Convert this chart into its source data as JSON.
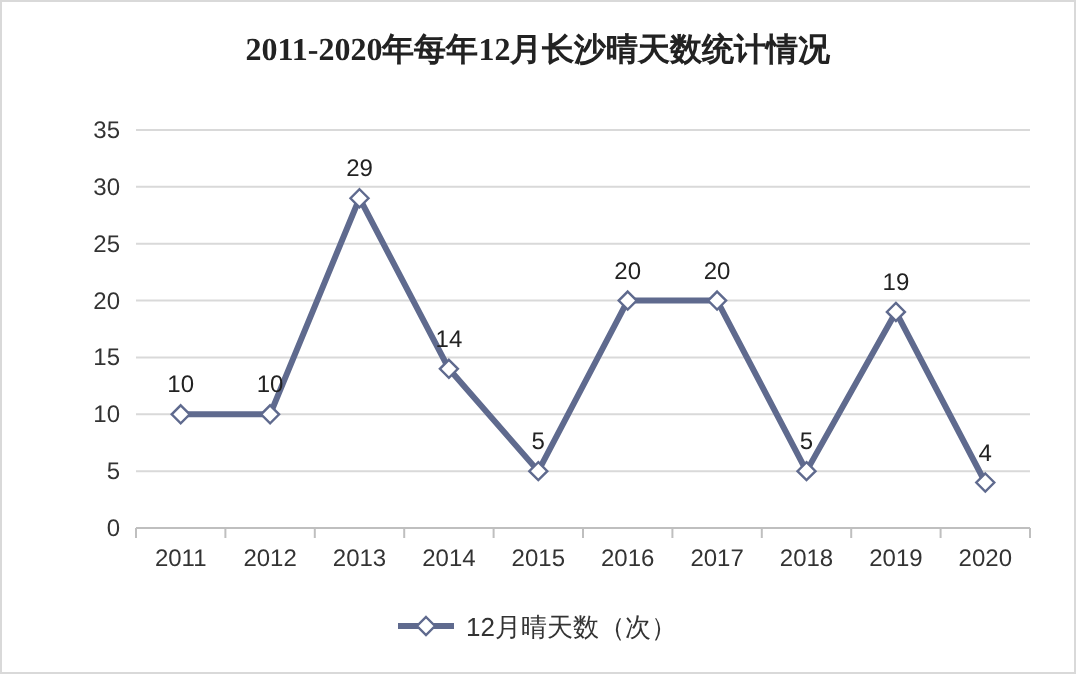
{
  "chart_data": {
    "type": "line",
    "title": "2011-2020年每年12月长沙晴天数统计情况",
    "categories": [
      "2011",
      "2012",
      "2013",
      "2014",
      "2015",
      "2016",
      "2017",
      "2018",
      "2019",
      "2020"
    ],
    "series": [
      {
        "name": "12月晴天数（次）",
        "color": "#5f6a8e",
        "values": [
          10,
          10,
          29,
          14,
          5,
          20,
          20,
          5,
          19,
          4
        ]
      }
    ],
    "ylim": [
      0,
      35
    ],
    "yticks": [
      0,
      5,
      10,
      15,
      20,
      25,
      30,
      35
    ],
    "grid": "y",
    "legend": "bottom",
    "marker": "diamond",
    "line_style": "solid",
    "data_labels": true
  }
}
